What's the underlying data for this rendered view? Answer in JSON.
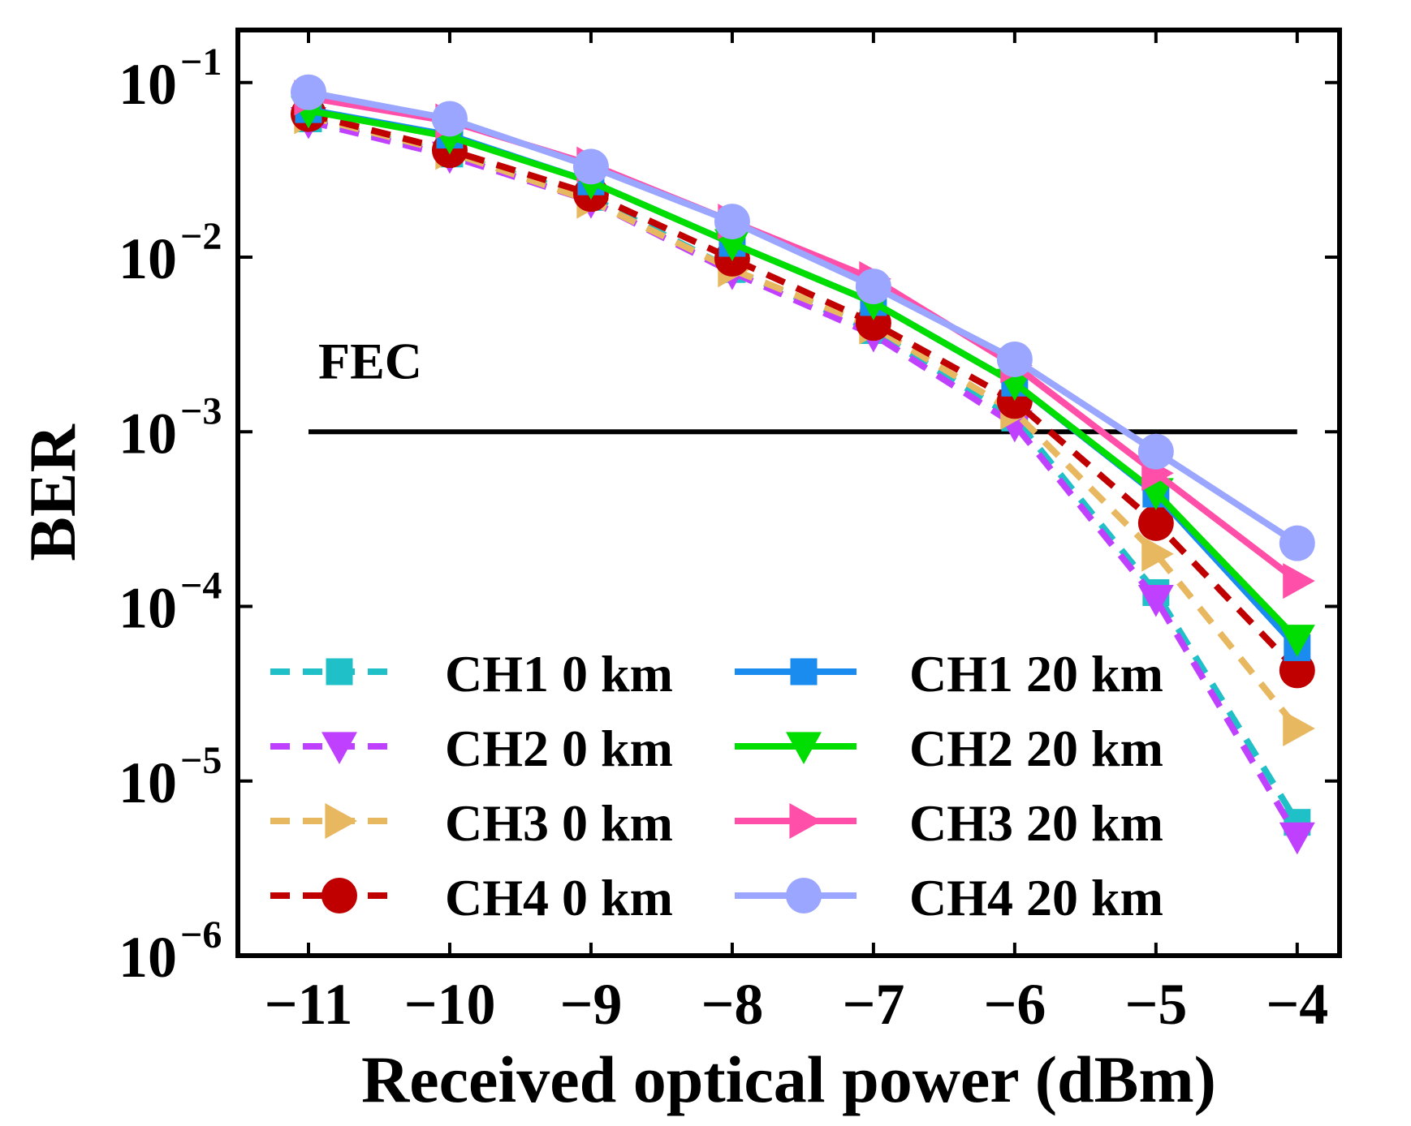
{
  "chart_data": {
    "type": "line",
    "y_scale": "log",
    "xlabel": "Received optical power (dBm)",
    "ylabel": "BER",
    "xlim": [
      -11.5,
      -3.7
    ],
    "ylim": [
      1e-06,
      0.2
    ],
    "x_ticks": [
      -11,
      -10,
      -9,
      -8,
      -7,
      -6,
      -5,
      -4
    ],
    "x_tick_labels": [
      "−11",
      "−10",
      "−9",
      "−8",
      "−7",
      "−6",
      "−5",
      "−4"
    ],
    "y_ticks": [
      {
        "value": 0.1,
        "base": "10",
        "exp": "−1"
      },
      {
        "value": 0.01,
        "base": "10",
        "exp": "−2"
      },
      {
        "value": 0.001,
        "base": "10",
        "exp": "−3"
      },
      {
        "value": 0.0001,
        "base": "10",
        "exp": "−4"
      },
      {
        "value": 1e-05,
        "base": "10",
        "exp": "−5"
      },
      {
        "value": 1e-06,
        "base": "10",
        "exp": "−6"
      }
    ],
    "threshold": {
      "label": "FEC",
      "value": 0.001,
      "x_range": [
        -11,
        -4
      ],
      "color": "#000000"
    },
    "x": [
      -11,
      -10,
      -9,
      -8,
      -7,
      -6,
      -5,
      -4
    ],
    "series": [
      {
        "name": "CH1 0 km",
        "color": "#20c0c8",
        "dash": true,
        "marker": "square",
        "values": [
          0.062,
          0.039,
          0.022,
          0.0085,
          0.0038,
          0.0012,
          0.00012,
          5.8e-06
        ]
      },
      {
        "name": "CH2 0 km",
        "color": "#c040ff",
        "dash": true,
        "marker": "triangle-down",
        "values": [
          0.06,
          0.038,
          0.021,
          0.0082,
          0.0036,
          0.0011,
          0.00011,
          4.8e-06
        ]
      },
      {
        "name": "CH3 0 km",
        "color": "#e8b860",
        "dash": true,
        "marker": "triangle-right",
        "values": [
          0.064,
          0.04,
          0.021,
          0.0085,
          0.004,
          0.0013,
          0.0002,
          2e-05
        ]
      },
      {
        "name": "CH4 0 km",
        "color": "#c00000",
        "dash": true,
        "marker": "circle",
        "values": [
          0.066,
          0.041,
          0.023,
          0.0098,
          0.0042,
          0.0015,
          0.0003,
          4.3e-05
        ]
      },
      {
        "name": "CH1 20 km",
        "color": "#1a8cf0",
        "dash": false,
        "marker": "square",
        "values": [
          0.07,
          0.05,
          0.027,
          0.012,
          0.0055,
          0.0019,
          0.00044,
          5.8e-05
        ]
      },
      {
        "name": "CH2 20 km",
        "color": "#00dd00",
        "dash": false,
        "marker": "triangle-down",
        "values": [
          0.069,
          0.049,
          0.027,
          0.012,
          0.0055,
          0.0019,
          0.00045,
          6.5e-05
        ]
      },
      {
        "name": "CH3 20 km",
        "color": "#ff4fa8",
        "dash": false,
        "marker": "triangle-right",
        "values": [
          0.082,
          0.06,
          0.034,
          0.016,
          0.0075,
          0.0024,
          0.00058,
          0.00014
        ]
      },
      {
        "name": "CH4 20 km",
        "color": "#9aa6ff",
        "dash": false,
        "marker": "circle",
        "values": [
          0.088,
          0.062,
          0.033,
          0.016,
          0.0068,
          0.0026,
          0.00077,
          0.00023
        ]
      }
    ],
    "legend": {
      "position": "lower-left",
      "columns": 2
    }
  }
}
